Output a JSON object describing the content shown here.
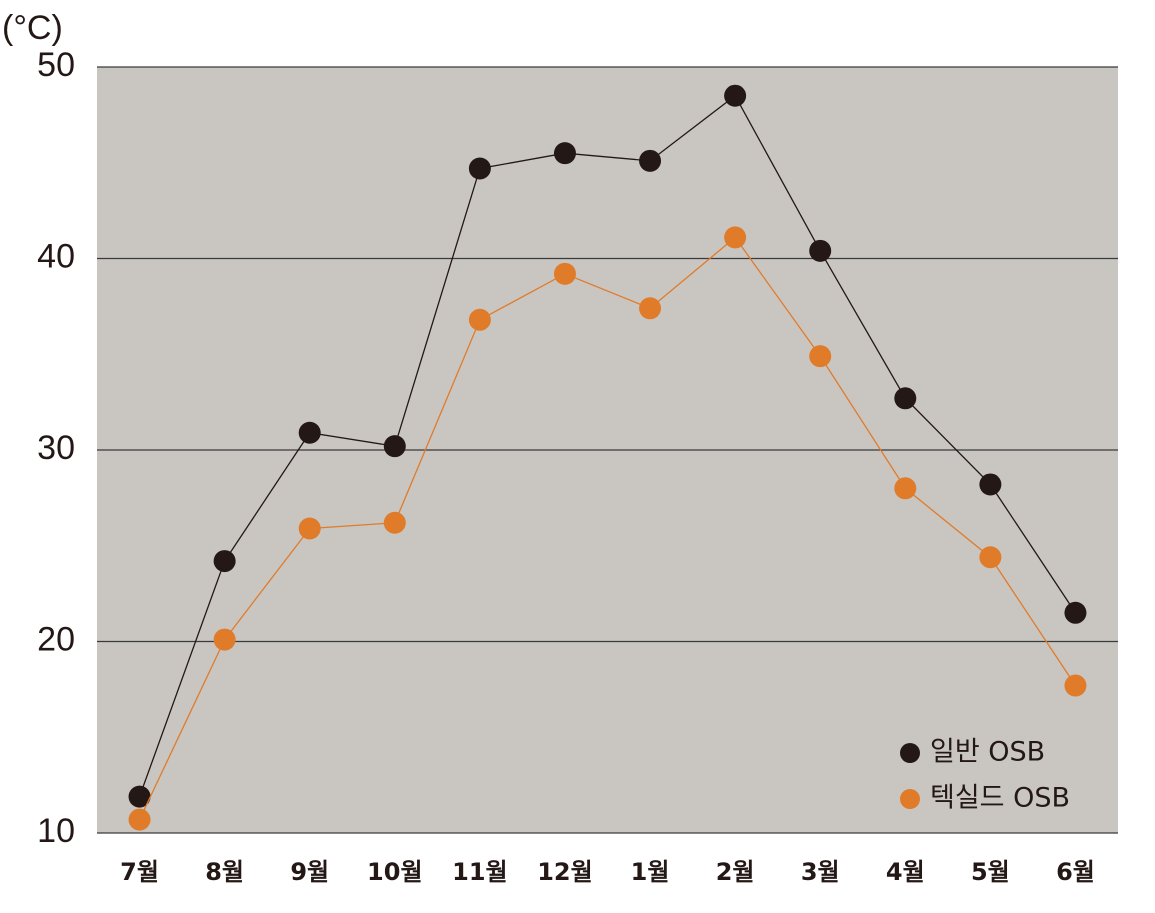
{
  "chart_data": {
    "type": "line",
    "y_label": "(°C)",
    "categories": [
      "7월",
      "8월",
      "9월",
      "10월",
      "11월",
      "12월",
      "1월",
      "2월",
      "3월",
      "4월",
      "5월",
      "6월"
    ],
    "series": [
      {
        "name": "일반 OSB",
        "color": "#231815",
        "values": [
          11.9,
          24.2,
          30.9,
          30.2,
          44.7,
          45.5,
          45.1,
          48.5,
          40.4,
          32.7,
          28.2,
          21.5
        ]
      },
      {
        "name": "텍실드 OSB",
        "color": "#e07b2a",
        "values": [
          10.7,
          20.1,
          25.9,
          26.2,
          36.8,
          39.2,
          37.4,
          41.1,
          34.9,
          28.0,
          24.4,
          17.7
        ]
      }
    ],
    "ylim": [
      10,
      50
    ],
    "yticks": [
      10,
      20,
      30,
      40,
      50
    ],
    "grid": true,
    "legend": "lower right",
    "plot_background": "#c9c6c2"
  }
}
